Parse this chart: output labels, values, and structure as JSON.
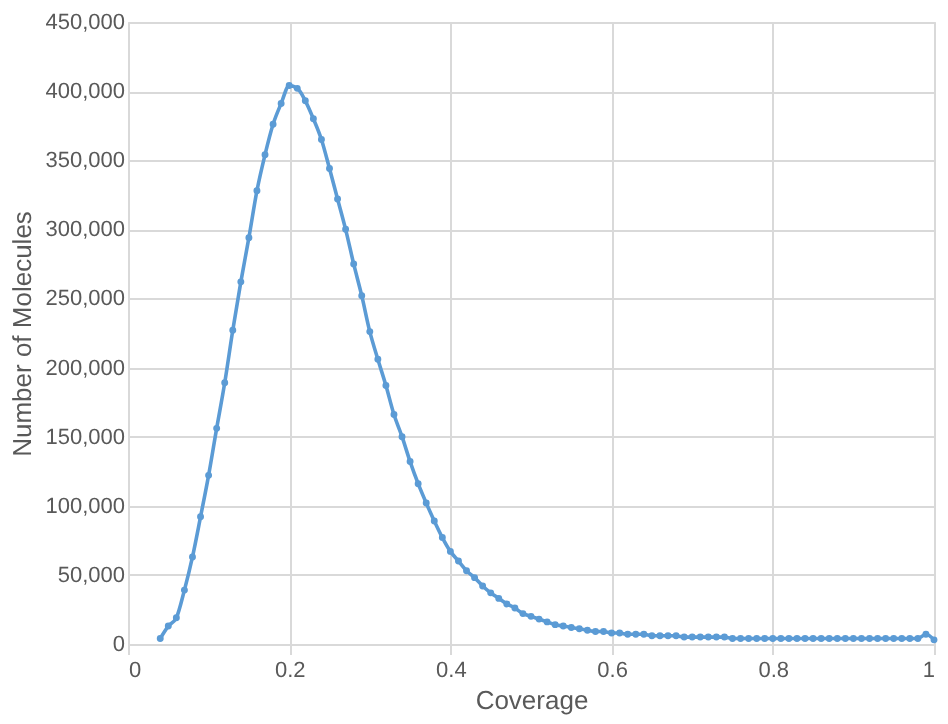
{
  "chart_data": {
    "type": "line",
    "xlabel": "Coverage",
    "ylabel": "Number of Molecules",
    "x": [
      0.04,
      0.05,
      0.06,
      0.07,
      0.08,
      0.09,
      0.1,
      0.11,
      0.12,
      0.13,
      0.14,
      0.15,
      0.16,
      0.17,
      0.18,
      0.19,
      0.2,
      0.21,
      0.22,
      0.23,
      0.24,
      0.25,
      0.26,
      0.27,
      0.28,
      0.29,
      0.3,
      0.31,
      0.32,
      0.33,
      0.34,
      0.35,
      0.36,
      0.37,
      0.38,
      0.39,
      0.4,
      0.41,
      0.42,
      0.43,
      0.44,
      0.45,
      0.46,
      0.47,
      0.48,
      0.49,
      0.5,
      0.51,
      0.52,
      0.53,
      0.54,
      0.55,
      0.56,
      0.57,
      0.58,
      0.59,
      0.6,
      0.61,
      0.62,
      0.63,
      0.64,
      0.65,
      0.66,
      0.67,
      0.68,
      0.69,
      0.7,
      0.71,
      0.72,
      0.73,
      0.74,
      0.75,
      0.76,
      0.77,
      0.78,
      0.79,
      0.8,
      0.81,
      0.82,
      0.83,
      0.84,
      0.85,
      0.86,
      0.87,
      0.88,
      0.89,
      0.9,
      0.91,
      0.92,
      0.93,
      0.94,
      0.95,
      0.96,
      0.97,
      0.98,
      0.99,
      1.0
    ],
    "series": [
      {
        "color": "#5b9bd5",
        "values": [
          4000,
          13000,
          19000,
          39000,
          63000,
          92000,
          122000,
          156000,
          189000,
          227000,
          262000,
          294000,
          328000,
          354000,
          376000,
          391000,
          404000,
          402000,
          393000,
          380000,
          365000,
          344000,
          322000,
          300000,
          275000,
          252000,
          226000,
          206000,
          187000,
          166000,
          150000,
          132000,
          116000,
          102000,
          89000,
          77000,
          67000,
          60000,
          53000,
          48000,
          42000,
          37000,
          33000,
          29000,
          26000,
          22000,
          20000,
          18000,
          16000,
          14000,
          13000,
          12000,
          11000,
          10000,
          9000,
          9000,
          8000,
          8000,
          7000,
          7000,
          7000,
          6000,
          6000,
          6000,
          6000,
          5000,
          5000,
          5000,
          5000,
          5000,
          5000,
          4000,
          4000,
          4000,
          4000,
          4000,
          4000,
          4000,
          4000,
          4000,
          4000,
          4000,
          4000,
          4000,
          4000,
          4000,
          4000,
          4000,
          4000,
          4000,
          4000,
          4000,
          4000,
          4000,
          4000,
          7000,
          3000
        ]
      }
    ],
    "xlim": [
      0,
      1
    ],
    "xticks": [
      0,
      0.2,
      0.4,
      0.6,
      0.8,
      1
    ],
    "ylim": [
      0,
      450000
    ],
    "yticks": [
      0,
      {
        "value": 50000,
        "label": "50,000"
      },
      {
        "value": 100000,
        "label": "100,000"
      },
      {
        "value": 150000,
        "label": "150,000"
      },
      {
        "value": 200000,
        "label": "200,000"
      },
      {
        "value": 250000,
        "label": "250,000"
      },
      {
        "value": 300000,
        "label": "300,000"
      },
      {
        "value": 350000,
        "label": "350,000"
      },
      {
        "value": 400000,
        "label": "400,000"
      },
      {
        "value": 450000,
        "label": "450,000"
      }
    ],
    "grid": true,
    "marker": "circle",
    "line_style": "solid"
  }
}
